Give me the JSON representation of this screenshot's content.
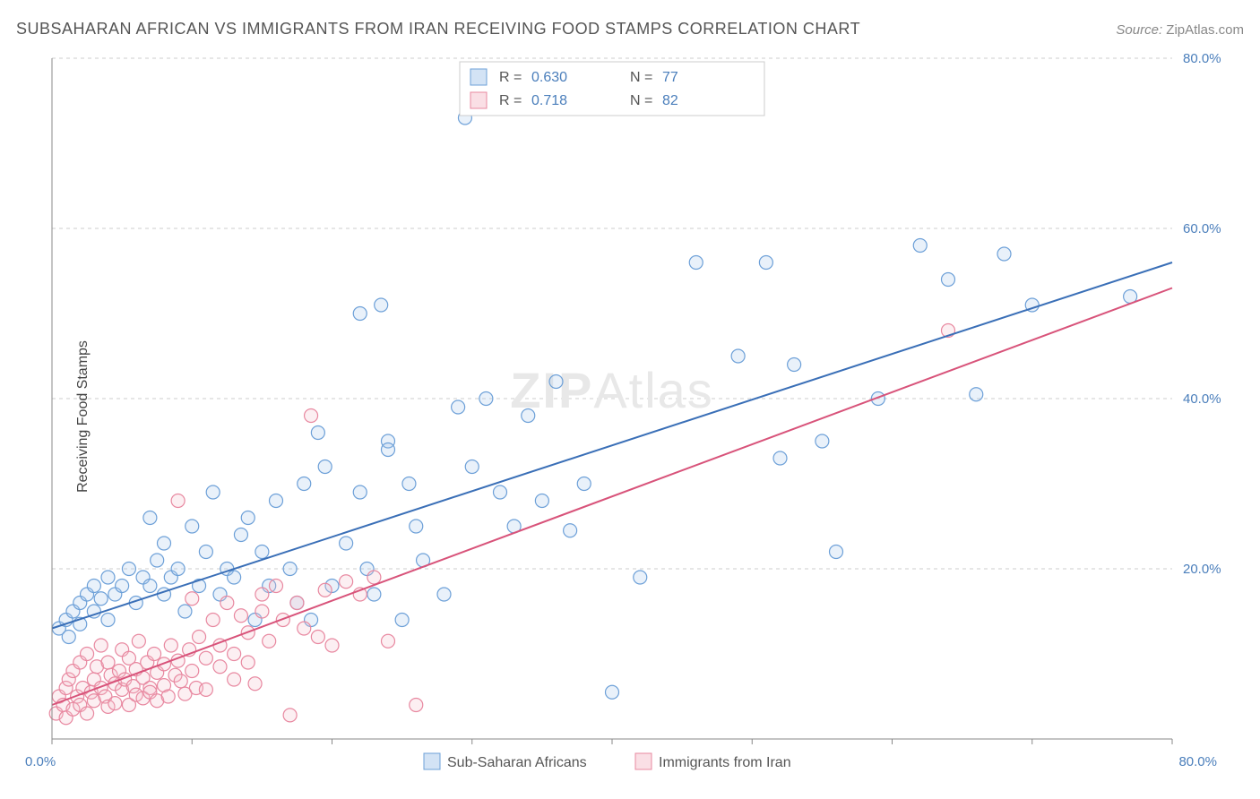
{
  "header": {
    "title": "SUBSAHARAN AFRICAN VS IMMIGRANTS FROM IRAN RECEIVING FOOD STAMPS CORRELATION CHART",
    "source_label": "Source:",
    "source_value": "ZipAtlas.com"
  },
  "ylabel": "Receiving Food Stamps",
  "watermark": {
    "bold": "ZIP",
    "rest": "Atlas"
  },
  "chart": {
    "type": "scatter",
    "xlim": [
      0,
      80
    ],
    "ylim": [
      0,
      80
    ],
    "x_ticks": [
      0,
      10,
      20,
      30,
      40,
      50,
      60,
      70,
      80
    ],
    "y_ticks": [
      20,
      40,
      60,
      80
    ],
    "x_tick_labels": {
      "0": "0.0%",
      "80": "80.0%"
    },
    "y_tick_labels": {
      "20": "20.0%",
      "40": "40.0%",
      "60": "60.0%",
      "80": "80.0%"
    },
    "background_color": "#ffffff",
    "grid_color": "#cccccc",
    "axis_color": "#888888",
    "marker_radius": 7.5,
    "marker_stroke_width": 1.2,
    "marker_fill_opacity": 0.25,
    "trend_line_width": 2
  },
  "series": [
    {
      "id": "ssa",
      "label": "Sub-Saharan Africans",
      "color_fill": "#a8c8ec",
      "color_stroke": "#6da0d8",
      "line_color": "#3a6fb7",
      "R": "0.630",
      "N": "77",
      "trend": {
        "x1": 0,
        "y1": 13,
        "x2": 80,
        "y2": 56
      },
      "points": [
        [
          0.5,
          13
        ],
        [
          1,
          14
        ],
        [
          1.2,
          12
        ],
        [
          1.5,
          15
        ],
        [
          2,
          13.5
        ],
        [
          2,
          16
        ],
        [
          2.5,
          17
        ],
        [
          3,
          15
        ],
        [
          3,
          18
        ],
        [
          3.5,
          16.5
        ],
        [
          4,
          14
        ],
        [
          4,
          19
        ],
        [
          4.5,
          17
        ],
        [
          5,
          18
        ],
        [
          5.5,
          20
        ],
        [
          6,
          16
        ],
        [
          6.5,
          19
        ],
        [
          7,
          26
        ],
        [
          7,
          18
        ],
        [
          7.5,
          21
        ],
        [
          8,
          17
        ],
        [
          8,
          23
        ],
        [
          8.5,
          19
        ],
        [
          9,
          20
        ],
        [
          9.5,
          15
        ],
        [
          10,
          25
        ],
        [
          10.5,
          18
        ],
        [
          11,
          22
        ],
        [
          11.5,
          29
        ],
        [
          12,
          17
        ],
        [
          12.5,
          20
        ],
        [
          13,
          19
        ],
        [
          13.5,
          24
        ],
        [
          14,
          26
        ],
        [
          14.5,
          14
        ],
        [
          15,
          22
        ],
        [
          15.5,
          18
        ],
        [
          16,
          28
        ],
        [
          17,
          20
        ],
        [
          17.5,
          16
        ],
        [
          18,
          30
        ],
        [
          18.5,
          14
        ],
        [
          19,
          36
        ],
        [
          19.5,
          32
        ],
        [
          20,
          18
        ],
        [
          21,
          23
        ],
        [
          22,
          29
        ],
        [
          22,
          50
        ],
        [
          22.5,
          20
        ],
        [
          23,
          17
        ],
        [
          23.5,
          51
        ],
        [
          24,
          35
        ],
        [
          24,
          34
        ],
        [
          25,
          14
        ],
        [
          25.5,
          30
        ],
        [
          26,
          25
        ],
        [
          26.5,
          21
        ],
        [
          28,
          17
        ],
        [
          29,
          39
        ],
        [
          29.5,
          73
        ],
        [
          30,
          32
        ],
        [
          31,
          40
        ],
        [
          32,
          29
        ],
        [
          33,
          25
        ],
        [
          34,
          38
        ],
        [
          35,
          28
        ],
        [
          36,
          42
        ],
        [
          37,
          24.5
        ],
        [
          38,
          30
        ],
        [
          40,
          5.5
        ],
        [
          42,
          19
        ],
        [
          46,
          56
        ],
        [
          49,
          45
        ],
        [
          51,
          56
        ],
        [
          52,
          33
        ],
        [
          53,
          44
        ],
        [
          55,
          35
        ],
        [
          56,
          22
        ],
        [
          59,
          40
        ],
        [
          62,
          58
        ],
        [
          64,
          54
        ],
        [
          66,
          40.5
        ],
        [
          68,
          57
        ],
        [
          70,
          51
        ],
        [
          77,
          52
        ]
      ]
    },
    {
      "id": "iran",
      "label": "Immigrants from Iran",
      "color_fill": "#f5c0cb",
      "color_stroke": "#e888a0",
      "line_color": "#d8537a",
      "R": "0.718",
      "N": "82",
      "trend": {
        "x1": 0,
        "y1": 4,
        "x2": 80,
        "y2": 53
      },
      "points": [
        [
          0.3,
          3
        ],
        [
          0.5,
          5
        ],
        [
          0.8,
          4
        ],
        [
          1,
          6
        ],
        [
          1,
          2.5
        ],
        [
          1.2,
          7
        ],
        [
          1.5,
          3.5
        ],
        [
          1.5,
          8
        ],
        [
          1.8,
          5
        ],
        [
          2,
          4
        ],
        [
          2,
          9
        ],
        [
          2.2,
          6
        ],
        [
          2.5,
          3
        ],
        [
          2.5,
          10
        ],
        [
          2.8,
          5.5
        ],
        [
          3,
          7
        ],
        [
          3,
          4.5
        ],
        [
          3.2,
          8.5
        ],
        [
          3.5,
          6
        ],
        [
          3.5,
          11
        ],
        [
          3.8,
          5
        ],
        [
          4,
          9
        ],
        [
          4,
          3.8
        ],
        [
          4.2,
          7.5
        ],
        [
          4.5,
          6.5
        ],
        [
          4.5,
          4.2
        ],
        [
          4.8,
          8
        ],
        [
          5,
          5.8
        ],
        [
          5,
          10.5
        ],
        [
          5.2,
          7
        ],
        [
          5.5,
          4
        ],
        [
          5.5,
          9.5
        ],
        [
          5.8,
          6.2
        ],
        [
          6,
          8.2
        ],
        [
          6,
          5.2
        ],
        [
          6.2,
          11.5
        ],
        [
          6.5,
          7.2
        ],
        [
          6.5,
          4.8
        ],
        [
          6.8,
          9
        ],
        [
          7,
          6
        ],
        [
          7,
          5.5
        ],
        [
          7.3,
          10
        ],
        [
          7.5,
          7.8
        ],
        [
          7.5,
          4.5
        ],
        [
          8,
          8.8
        ],
        [
          8,
          6.3
        ],
        [
          8.3,
          5
        ],
        [
          8.5,
          11
        ],
        [
          8.8,
          7.5
        ],
        [
          9,
          9.2
        ],
        [
          9,
          28
        ],
        [
          9.2,
          6.8
        ],
        [
          9.5,
          5.3
        ],
        [
          9.8,
          10.5
        ],
        [
          10,
          8
        ],
        [
          10,
          16.5
        ],
        [
          10.3,
          6
        ],
        [
          10.5,
          12
        ],
        [
          11,
          9.5
        ],
        [
          11,
          5.8
        ],
        [
          11.5,
          14
        ],
        [
          12,
          11
        ],
        [
          12,
          8.5
        ],
        [
          12.5,
          16
        ],
        [
          13,
          10
        ],
        [
          13,
          7
        ],
        [
          13.5,
          14.5
        ],
        [
          14,
          12.5
        ],
        [
          14,
          9
        ],
        [
          14.5,
          6.5
        ],
        [
          15,
          15
        ],
        [
          15,
          17
        ],
        [
          15.5,
          11.5
        ],
        [
          16,
          18
        ],
        [
          16.5,
          14
        ],
        [
          17,
          2.8
        ],
        [
          17.5,
          16
        ],
        [
          18,
          13
        ],
        [
          18.5,
          38
        ],
        [
          19,
          12
        ],
        [
          19.5,
          17.5
        ],
        [
          20,
          11
        ],
        [
          21,
          18.5
        ],
        [
          22,
          17
        ],
        [
          23,
          19
        ],
        [
          24,
          11.5
        ],
        [
          26,
          4
        ],
        [
          64,
          48
        ]
      ]
    }
  ],
  "stats_box": {
    "rows": [
      {
        "series": "ssa",
        "r_label": "R =",
        "n_label": "N ="
      },
      {
        "series": "iran",
        "r_label": "R =",
        "n_label": "N ="
      }
    ]
  },
  "bottom_legend": {
    "items": [
      {
        "series": "ssa"
      },
      {
        "series": "iran"
      }
    ]
  }
}
